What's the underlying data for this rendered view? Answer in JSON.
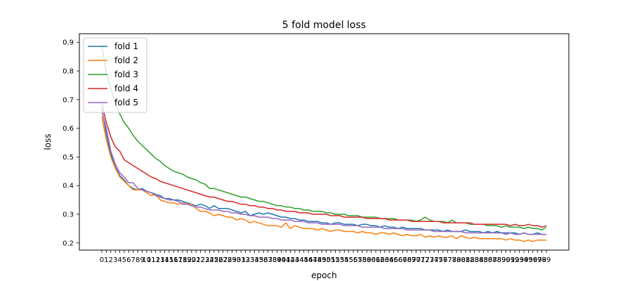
{
  "chart_data": {
    "type": "line",
    "title": "5 fold model loss",
    "xlabel": "epoch",
    "ylabel": "loss",
    "x": [
      0,
      1,
      2,
      3,
      4,
      5,
      6,
      7,
      8,
      9,
      10,
      11,
      12,
      13,
      14,
      15,
      16,
      17,
      18,
      19,
      20,
      21,
      22,
      23,
      24,
      25,
      26,
      27,
      28,
      29,
      30,
      31,
      32,
      33,
      34,
      35,
      36,
      37,
      38,
      39,
      40,
      41,
      42,
      43,
      44,
      45,
      46,
      47,
      48,
      49,
      50,
      51,
      52,
      53,
      54,
      55,
      56,
      57,
      58,
      59,
      60,
      61,
      62,
      63,
      64,
      65,
      66,
      67,
      68,
      69,
      70,
      71,
      72,
      73,
      74,
      75,
      76,
      77,
      78,
      79,
      80,
      81,
      82,
      83,
      84,
      85,
      86,
      87,
      88,
      89,
      90,
      91,
      92,
      93,
      94,
      95,
      96,
      97,
      98,
      99
    ],
    "ylim": [
      0.175,
      0.93
    ],
    "yticks": [
      0.2,
      0.3,
      0.4,
      0.5,
      0.6,
      0.7,
      0.8,
      0.9
    ],
    "grid": false,
    "legend_position": "top-left",
    "series": [
      {
        "name": "fold 1",
        "color": "#1f77b4",
        "values": [
          0.67,
          0.58,
          0.51,
          0.465,
          0.435,
          0.42,
          0.4,
          0.39,
          0.385,
          0.39,
          0.38,
          0.375,
          0.37,
          0.365,
          0.355,
          0.355,
          0.35,
          0.35,
          0.345,
          0.34,
          0.335,
          0.33,
          0.335,
          0.33,
          0.32,
          0.33,
          0.32,
          0.32,
          0.32,
          0.315,
          0.31,
          0.305,
          0.31,
          0.295,
          0.3,
          0.305,
          0.3,
          0.305,
          0.3,
          0.295,
          0.29,
          0.29,
          0.285,
          0.285,
          0.28,
          0.28,
          0.275,
          0.275,
          0.275,
          0.27,
          0.27,
          0.265,
          0.27,
          0.27,
          0.265,
          0.265,
          0.265,
          0.26,
          0.265,
          0.265,
          0.26,
          0.26,
          0.255,
          0.26,
          0.255,
          0.255,
          0.25,
          0.255,
          0.25,
          0.25,
          0.25,
          0.25,
          0.245,
          0.245,
          0.245,
          0.245,
          0.24,
          0.245,
          0.24,
          0.24,
          0.24,
          0.245,
          0.24,
          0.24,
          0.24,
          0.235,
          0.24,
          0.235,
          0.24,
          0.235,
          0.235,
          0.235,
          0.235,
          0.23,
          0.235,
          0.23,
          0.23,
          0.235,
          0.23,
          0.23
        ]
      },
      {
        "name": "fold 2",
        "color": "#ff7f0e",
        "values": [
          0.64,
          0.56,
          0.5,
          0.46,
          0.43,
          0.415,
          0.4,
          0.385,
          0.385,
          0.385,
          0.375,
          0.365,
          0.37,
          0.35,
          0.345,
          0.34,
          0.34,
          0.335,
          0.34,
          0.335,
          0.335,
          0.32,
          0.31,
          0.31,
          0.305,
          0.295,
          0.3,
          0.295,
          0.29,
          0.29,
          0.28,
          0.285,
          0.28,
          0.27,
          0.275,
          0.27,
          0.265,
          0.26,
          0.26,
          0.26,
          0.255,
          0.27,
          0.25,
          0.26,
          0.255,
          0.25,
          0.25,
          0.25,
          0.245,
          0.25,
          0.245,
          0.24,
          0.245,
          0.245,
          0.24,
          0.24,
          0.24,
          0.235,
          0.24,
          0.235,
          0.235,
          0.23,
          0.235,
          0.235,
          0.23,
          0.235,
          0.23,
          0.225,
          0.23,
          0.225,
          0.225,
          0.23,
          0.22,
          0.225,
          0.22,
          0.225,
          0.22,
          0.22,
          0.225,
          0.215,
          0.225,
          0.22,
          0.215,
          0.22,
          0.215,
          0.215,
          0.215,
          0.215,
          0.215,
          0.215,
          0.21,
          0.215,
          0.21,
          0.21,
          0.205,
          0.21,
          0.205,
          0.21,
          0.21,
          0.21
        ]
      },
      {
        "name": "fold 3",
        "color": "#2ca02c",
        "values": [
          0.89,
          0.79,
          0.74,
          0.69,
          0.65,
          0.62,
          0.6,
          0.575,
          0.555,
          0.54,
          0.525,
          0.51,
          0.495,
          0.485,
          0.47,
          0.46,
          0.45,
          0.445,
          0.44,
          0.43,
          0.425,
          0.42,
          0.41,
          0.405,
          0.39,
          0.39,
          0.385,
          0.38,
          0.375,
          0.37,
          0.365,
          0.36,
          0.36,
          0.355,
          0.35,
          0.345,
          0.345,
          0.34,
          0.335,
          0.33,
          0.33,
          0.325,
          0.325,
          0.32,
          0.32,
          0.315,
          0.315,
          0.31,
          0.31,
          0.31,
          0.305,
          0.305,
          0.3,
          0.3,
          0.3,
          0.295,
          0.295,
          0.295,
          0.29,
          0.29,
          0.29,
          0.29,
          0.285,
          0.285,
          0.285,
          0.285,
          0.28,
          0.28,
          0.28,
          0.28,
          0.275,
          0.28,
          0.29,
          0.28,
          0.275,
          0.275,
          0.275,
          0.27,
          0.28,
          0.27,
          0.27,
          0.27,
          0.265,
          0.265,
          0.265,
          0.265,
          0.26,
          0.26,
          0.26,
          0.255,
          0.26,
          0.255,
          0.255,
          0.255,
          0.25,
          0.255,
          0.25,
          0.25,
          0.245,
          0.255
        ]
      },
      {
        "name": "fold 4",
        "color": "#d62728",
        "values": [
          0.69,
          0.62,
          0.57,
          0.535,
          0.52,
          0.49,
          0.48,
          0.47,
          0.46,
          0.45,
          0.44,
          0.43,
          0.425,
          0.415,
          0.41,
          0.405,
          0.4,
          0.395,
          0.39,
          0.385,
          0.38,
          0.375,
          0.37,
          0.365,
          0.36,
          0.36,
          0.355,
          0.35,
          0.345,
          0.345,
          0.34,
          0.335,
          0.335,
          0.33,
          0.33,
          0.325,
          0.325,
          0.32,
          0.32,
          0.315,
          0.315,
          0.31,
          0.31,
          0.31,
          0.305,
          0.305,
          0.305,
          0.3,
          0.3,
          0.3,
          0.3,
          0.295,
          0.295,
          0.295,
          0.29,
          0.29,
          0.29,
          0.29,
          0.29,
          0.285,
          0.285,
          0.285,
          0.285,
          0.285,
          0.28,
          0.28,
          0.28,
          0.28,
          0.28,
          0.275,
          0.275,
          0.275,
          0.275,
          0.275,
          0.275,
          0.275,
          0.27,
          0.27,
          0.27,
          0.27,
          0.27,
          0.27,
          0.27,
          0.265,
          0.265,
          0.265,
          0.265,
          0.265,
          0.265,
          0.265,
          0.265,
          0.26,
          0.265,
          0.26,
          0.26,
          0.265,
          0.26,
          0.26,
          0.255,
          0.26
        ]
      },
      {
        "name": "fold 5",
        "color": "#9467bd",
        "values": [
          0.66,
          0.6,
          0.52,
          0.475,
          0.445,
          0.43,
          0.41,
          0.41,
          0.39,
          0.385,
          0.38,
          0.375,
          0.365,
          0.36,
          0.355,
          0.35,
          0.35,
          0.345,
          0.335,
          0.335,
          0.33,
          0.325,
          0.325,
          0.32,
          0.315,
          0.315,
          0.315,
          0.31,
          0.31,
          0.305,
          0.305,
          0.3,
          0.3,
          0.295,
          0.295,
          0.29,
          0.29,
          0.29,
          0.285,
          0.285,
          0.28,
          0.28,
          0.28,
          0.275,
          0.275,
          0.275,
          0.27,
          0.27,
          0.27,
          0.265,
          0.265,
          0.265,
          0.265,
          0.265,
          0.26,
          0.26,
          0.26,
          0.26,
          0.255,
          0.255,
          0.255,
          0.255,
          0.255,
          0.25,
          0.25,
          0.25,
          0.25,
          0.25,
          0.245,
          0.245,
          0.245,
          0.245,
          0.245,
          0.245,
          0.24,
          0.24,
          0.24,
          0.24,
          0.24,
          0.24,
          0.24,
          0.235,
          0.235,
          0.235,
          0.235,
          0.235,
          0.235,
          0.235,
          0.235,
          0.235,
          0.23,
          0.235,
          0.23,
          0.23,
          0.235,
          0.23,
          0.23,
          0.23,
          0.23,
          0.23
        ]
      }
    ]
  }
}
